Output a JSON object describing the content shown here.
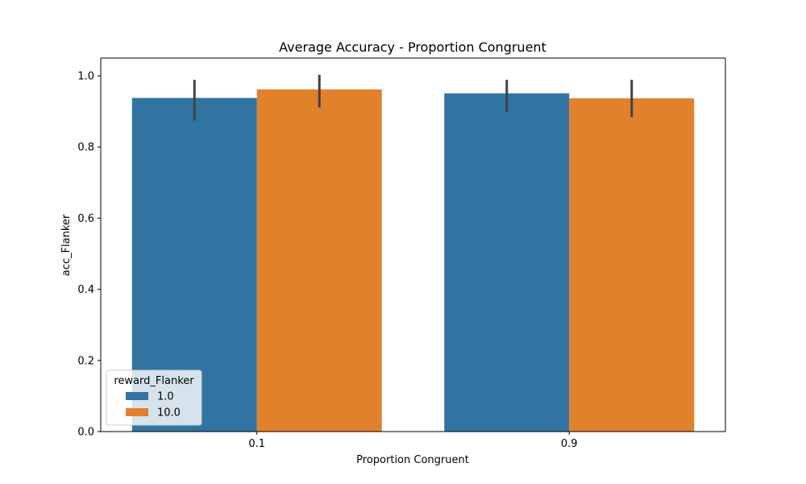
{
  "chart_data": {
    "type": "bar",
    "title": "Average Accuracy - Proportion Congruent",
    "xlabel": "Proportion Congruent",
    "ylabel": "acc_Flanker",
    "categories": [
      "0.1",
      "0.9"
    ],
    "ylim": [
      0,
      1.05
    ],
    "yticks": [
      0.0,
      0.2,
      0.4,
      0.6,
      0.8,
      1.0
    ],
    "ytick_labels": [
      "0.0",
      "0.2",
      "0.4",
      "0.6",
      "0.8",
      "1.0"
    ],
    "grid": false,
    "legend": {
      "title": "reward_Flanker",
      "position": "lower-left"
    },
    "series": [
      {
        "name": "1.0",
        "color": "#3274a1",
        "values": [
          0.938,
          0.951
        ],
        "ci_low": [
          0.874,
          0.898
        ],
        "ci_high": [
          0.989,
          0.989
        ]
      },
      {
        "name": "10.0",
        "color": "#e1812c",
        "values": [
          0.962,
          0.937
        ],
        "ci_low": [
          0.911,
          0.884
        ],
        "ci_high": [
          1.003,
          0.989
        ]
      }
    ]
  }
}
